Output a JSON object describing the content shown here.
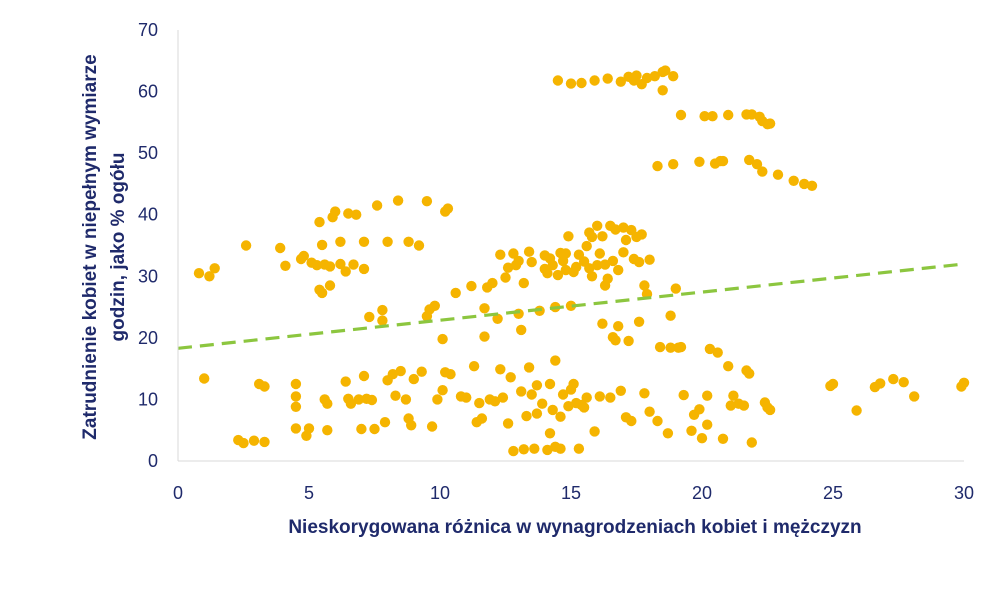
{
  "chart_data": {
    "type": "scatter",
    "xlabel": "Nieskorygowana różnica w wynagrodzeniach kobiet i mężczyzn",
    "ylabel_lines": [
      "Zatrudnienie kobiet w niepełnym wymiarze",
      "godzin, jako % ogółu"
    ],
    "xlim": [
      0,
      30
    ],
    "ylim": [
      0,
      70
    ],
    "x_ticks": [
      "0",
      "5",
      "10",
      "15",
      "20",
      "25",
      "30"
    ],
    "y_ticks": [
      "0",
      "10",
      "20",
      "30",
      "40",
      "50",
      "60",
      "70"
    ],
    "grid": false,
    "point_color": "#f5b400",
    "trend_color": "#8cc63f",
    "axis_text_color": "#1f2a6b",
    "trendline": {
      "x": [
        0,
        30
      ],
      "y": [
        18.3,
        32.0
      ],
      "style": "dashed"
    },
    "series": [
      {
        "points": [
          [
            0.8,
            30.5
          ],
          [
            1.2,
            30.0
          ],
          [
            1.4,
            31.3
          ],
          [
            1.0,
            13.4
          ],
          [
            2.3,
            3.4
          ],
          [
            2.5,
            2.9
          ],
          [
            2.6,
            35.0
          ],
          [
            2.9,
            3.3
          ],
          [
            3.1,
            12.5
          ],
          [
            3.3,
            3.1
          ],
          [
            3.3,
            12.1
          ],
          [
            3.9,
            34.6
          ],
          [
            4.1,
            31.7
          ],
          [
            4.5,
            12.5
          ],
          [
            4.5,
            10.5
          ],
          [
            4.5,
            8.8
          ],
          [
            4.5,
            5.3
          ],
          [
            4.7,
            32.8
          ],
          [
            4.8,
            33.3
          ],
          [
            4.9,
            4.1
          ],
          [
            5.0,
            5.3
          ],
          [
            5.1,
            32.2
          ],
          [
            5.3,
            31.8
          ],
          [
            5.4,
            27.8
          ],
          [
            5.4,
            38.8
          ],
          [
            5.5,
            35.1
          ],
          [
            5.5,
            27.3
          ],
          [
            5.6,
            31.9
          ],
          [
            5.6,
            10.0
          ],
          [
            5.7,
            5.0
          ],
          [
            5.7,
            9.3
          ],
          [
            5.8,
            28.5
          ],
          [
            5.8,
            31.6
          ],
          [
            5.9,
            39.6
          ],
          [
            6.0,
            40.5
          ],
          [
            6.2,
            35.6
          ],
          [
            6.2,
            32.0
          ],
          [
            6.4,
            30.8
          ],
          [
            6.4,
            12.9
          ],
          [
            6.5,
            10.1
          ],
          [
            6.5,
            40.2
          ],
          [
            6.6,
            9.3
          ],
          [
            6.7,
            31.9
          ],
          [
            6.8,
            40.0
          ],
          [
            6.9,
            10.0
          ],
          [
            7.1,
            35.6
          ],
          [
            7.0,
            5.2
          ],
          [
            7.1,
            13.8
          ],
          [
            7.1,
            31.2
          ],
          [
            7.2,
            10.1
          ],
          [
            7.3,
            23.4
          ],
          [
            7.4,
            9.9
          ],
          [
            7.5,
            5.2
          ],
          [
            7.6,
            41.5
          ],
          [
            7.8,
            24.5
          ],
          [
            7.8,
            22.8
          ],
          [
            7.9,
            6.3
          ],
          [
            8.0,
            13.1
          ],
          [
            8.0,
            35.6
          ],
          [
            8.2,
            14.1
          ],
          [
            8.3,
            10.6
          ],
          [
            8.4,
            42.3
          ],
          [
            8.5,
            14.6
          ],
          [
            8.7,
            10.0
          ],
          [
            8.8,
            35.6
          ],
          [
            8.8,
            6.9
          ],
          [
            8.9,
            5.8
          ],
          [
            9.0,
            13.3
          ],
          [
            9.2,
            35.0
          ],
          [
            9.3,
            14.5
          ],
          [
            9.5,
            42.2
          ],
          [
            9.5,
            23.5
          ],
          [
            9.6,
            24.6
          ],
          [
            9.7,
            5.6
          ],
          [
            9.8,
            25.2
          ],
          [
            9.9,
            10.0
          ],
          [
            10.1,
            19.8
          ],
          [
            10.1,
            11.5
          ],
          [
            10.2,
            40.5
          ],
          [
            10.3,
            41.0
          ],
          [
            10.2,
            14.4
          ],
          [
            10.4,
            14.1
          ],
          [
            10.6,
            27.3
          ],
          [
            10.8,
            10.5
          ],
          [
            11.0,
            10.3
          ],
          [
            11.2,
            28.4
          ],
          [
            11.3,
            15.4
          ],
          [
            11.4,
            6.3
          ],
          [
            11.5,
            9.4
          ],
          [
            11.6,
            6.9
          ],
          [
            11.7,
            24.8
          ],
          [
            11.7,
            20.2
          ],
          [
            11.8,
            28.2
          ],
          [
            11.9,
            10.0
          ],
          [
            12.0,
            28.9
          ],
          [
            12.1,
            9.7
          ],
          [
            12.2,
            23.1
          ],
          [
            12.3,
            33.5
          ],
          [
            12.3,
            14.9
          ],
          [
            12.4,
            10.3
          ],
          [
            12.5,
            29.8
          ],
          [
            12.6,
            6.1
          ],
          [
            12.6,
            31.4
          ],
          [
            12.7,
            13.6
          ],
          [
            12.8,
            33.7
          ],
          [
            12.8,
            1.6
          ],
          [
            12.9,
            31.8
          ],
          [
            13.0,
            32.5
          ],
          [
            13.0,
            23.9
          ],
          [
            13.1,
            21.3
          ],
          [
            13.1,
            11.3
          ],
          [
            13.2,
            28.9
          ],
          [
            13.2,
            1.9
          ],
          [
            13.3,
            7.3
          ],
          [
            13.4,
            15.2
          ],
          [
            13.4,
            34.0
          ],
          [
            13.5,
            32.3
          ],
          [
            13.5,
            10.8
          ],
          [
            13.6,
            2.0
          ],
          [
            13.7,
            12.3
          ],
          [
            13.7,
            7.7
          ],
          [
            13.8,
            24.4
          ],
          [
            13.9,
            9.3
          ],
          [
            14.0,
            31.2
          ],
          [
            14.0,
            33.4
          ],
          [
            14.1,
            30.5
          ],
          [
            14.1,
            1.8
          ],
          [
            14.2,
            32.9
          ],
          [
            14.2,
            4.5
          ],
          [
            14.2,
            12.5
          ],
          [
            14.3,
            31.8
          ],
          [
            14.3,
            8.3
          ],
          [
            14.4,
            16.3
          ],
          [
            14.4,
            2.3
          ],
          [
            14.4,
            25.0
          ],
          [
            14.5,
            30.2
          ],
          [
            14.5,
            61.8
          ],
          [
            14.6,
            33.8
          ],
          [
            14.6,
            7.2
          ],
          [
            14.6,
            2.0
          ],
          [
            14.7,
            32.5
          ],
          [
            14.7,
            10.8
          ],
          [
            14.8,
            31.0
          ],
          [
            14.8,
            33.7
          ],
          [
            14.9,
            36.5
          ],
          [
            14.9,
            8.9
          ],
          [
            15.0,
            61.3
          ],
          [
            15.0,
            25.2
          ],
          [
            15.0,
            11.6
          ],
          [
            15.1,
            30.7
          ],
          [
            15.1,
            12.5
          ],
          [
            15.2,
            31.5
          ],
          [
            15.2,
            9.4
          ],
          [
            15.3,
            33.5
          ],
          [
            15.3,
            2.0
          ],
          [
            15.4,
            61.4
          ],
          [
            15.4,
            9.1
          ],
          [
            15.5,
            32.4
          ],
          [
            15.5,
            8.7
          ],
          [
            15.6,
            34.9
          ],
          [
            15.6,
            10.3
          ],
          [
            15.7,
            37.1
          ],
          [
            15.7,
            31.3
          ],
          [
            15.8,
            36.4
          ],
          [
            15.8,
            30.0
          ],
          [
            15.9,
            61.8
          ],
          [
            15.9,
            4.8
          ],
          [
            16.0,
            38.2
          ],
          [
            16.0,
            31.8
          ],
          [
            16.1,
            33.7
          ],
          [
            16.1,
            10.5
          ],
          [
            16.2,
            36.5
          ],
          [
            16.2,
            22.3
          ],
          [
            16.3,
            31.9
          ],
          [
            16.3,
            28.5
          ],
          [
            16.4,
            62.1
          ],
          [
            16.4,
            29.6
          ],
          [
            16.5,
            38.2
          ],
          [
            16.5,
            10.3
          ],
          [
            16.6,
            32.5
          ],
          [
            16.6,
            20.1
          ],
          [
            16.7,
            37.6
          ],
          [
            16.7,
            19.6
          ],
          [
            16.8,
            31.0
          ],
          [
            16.8,
            21.9
          ],
          [
            16.9,
            61.6
          ],
          [
            16.9,
            11.4
          ],
          [
            17.0,
            37.9
          ],
          [
            17.0,
            33.9
          ],
          [
            17.1,
            35.9
          ],
          [
            17.1,
            7.1
          ],
          [
            17.2,
            62.4
          ],
          [
            17.2,
            19.5
          ],
          [
            17.3,
            37.5
          ],
          [
            17.3,
            6.5
          ],
          [
            17.4,
            61.8
          ],
          [
            17.4,
            32.8
          ],
          [
            17.5,
            62.6
          ],
          [
            17.5,
            36.4
          ],
          [
            17.6,
            32.3
          ],
          [
            17.6,
            22.6
          ],
          [
            17.7,
            61.2
          ],
          [
            17.7,
            36.8
          ],
          [
            17.8,
            28.5
          ],
          [
            17.8,
            11.0
          ],
          [
            17.9,
            62.2
          ],
          [
            17.9,
            27.1
          ],
          [
            18.0,
            32.7
          ],
          [
            18.0,
            8.0
          ],
          [
            18.2,
            62.5
          ],
          [
            18.3,
            47.9
          ],
          [
            18.3,
            6.5
          ],
          [
            18.4,
            18.5
          ],
          [
            18.5,
            63.2
          ],
          [
            18.5,
            60.2
          ],
          [
            18.6,
            63.4
          ],
          [
            18.7,
            4.5
          ],
          [
            18.8,
            23.6
          ],
          [
            18.8,
            18.4
          ],
          [
            18.9,
            48.2
          ],
          [
            18.9,
            62.5
          ],
          [
            19.0,
            28.0
          ],
          [
            19.1,
            18.4
          ],
          [
            19.2,
            56.2
          ],
          [
            19.2,
            18.5
          ],
          [
            19.3,
            10.7
          ],
          [
            19.6,
            4.9
          ],
          [
            19.7,
            7.5
          ],
          [
            19.9,
            8.4
          ],
          [
            19.9,
            48.6
          ],
          [
            20.0,
            3.7
          ],
          [
            20.1,
            56.0
          ],
          [
            20.2,
            5.9
          ],
          [
            20.2,
            10.6
          ],
          [
            20.3,
            18.2
          ],
          [
            20.4,
            56.0
          ],
          [
            20.5,
            48.3
          ],
          [
            20.6,
            17.6
          ],
          [
            20.7,
            48.7
          ],
          [
            20.8,
            48.7
          ],
          [
            20.8,
            3.6
          ],
          [
            21.0,
            56.2
          ],
          [
            21.0,
            15.4
          ],
          [
            21.1,
            9.0
          ],
          [
            21.2,
            10.6
          ],
          [
            21.4,
            9.3
          ],
          [
            21.6,
            9.0
          ],
          [
            21.7,
            14.7
          ],
          [
            21.7,
            56.3
          ],
          [
            21.8,
            48.9
          ],
          [
            21.9,
            56.3
          ],
          [
            21.9,
            3.0
          ],
          [
            21.8,
            14.2
          ],
          [
            22.1,
            48.2
          ],
          [
            22.2,
            55.9
          ],
          [
            22.3,
            55.2
          ],
          [
            22.3,
            47.0
          ],
          [
            22.4,
            9.5
          ],
          [
            22.5,
            54.7
          ],
          [
            22.5,
            8.7
          ],
          [
            22.6,
            54.8
          ],
          [
            22.6,
            8.3
          ],
          [
            22.9,
            46.5
          ],
          [
            23.5,
            45.5
          ],
          [
            23.9,
            45.0
          ],
          [
            24.2,
            44.7
          ],
          [
            24.9,
            12.2
          ],
          [
            25.0,
            12.5
          ],
          [
            25.9,
            8.2
          ],
          [
            26.6,
            12.0
          ],
          [
            26.8,
            12.6
          ],
          [
            27.3,
            13.3
          ],
          [
            27.7,
            12.8
          ],
          [
            28.1,
            10.5
          ],
          [
            29.9,
            12.1
          ],
          [
            30.0,
            12.7
          ]
        ]
      }
    ]
  }
}
